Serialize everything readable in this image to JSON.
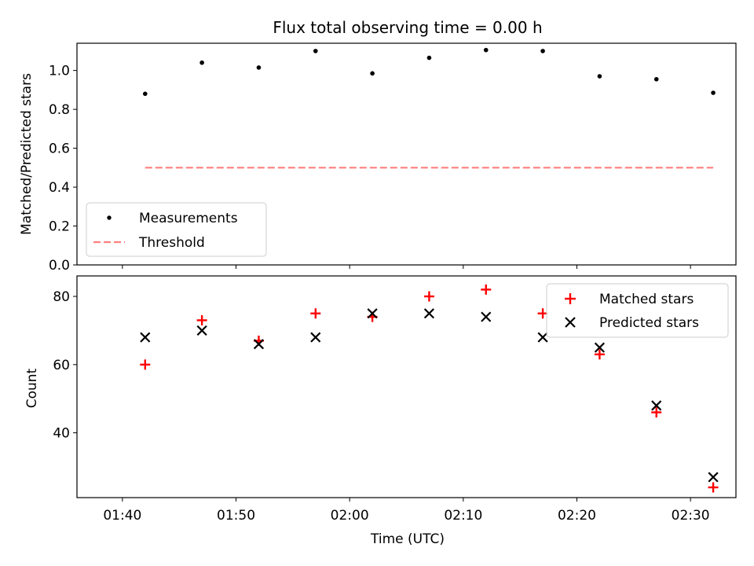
{
  "chart_data": [
    {
      "type": "scatter",
      "title": "Flux total observing time = 0.00 h",
      "ylabel": "Matched/Predicted stars",
      "xlabel": "",
      "ylim": [
        0.0,
        1.14
      ],
      "yticks": [
        "0.0",
        "0.2",
        "0.4",
        "0.6",
        "0.8",
        "1.0"
      ],
      "x_range": [
        "01:36",
        "02:34"
      ],
      "legend_position": "lower-left",
      "series": [
        {
          "name": "Measurements",
          "marker": "dot",
          "color": "#000000",
          "x": [
            "01:42",
            "01:47",
            "01:52",
            "01:57",
            "02:02",
            "02:07",
            "02:12",
            "02:17",
            "02:22",
            "02:27",
            "02:32"
          ],
          "y": [
            0.88,
            1.04,
            1.015,
            1.1,
            0.985,
            1.065,
            1.105,
            1.1,
            0.97,
            0.955,
            0.885
          ]
        },
        {
          "name": "Threshold",
          "style": "dashed-line",
          "color": "#ff7f7f",
          "x": [
            "01:42",
            "02:32"
          ],
          "y": [
            0.5,
            0.5
          ]
        }
      ]
    },
    {
      "type": "scatter",
      "title": "",
      "ylabel": "Count",
      "xlabel": "Time (UTC)",
      "ylim": [
        21,
        86
      ],
      "yticks": [
        "40",
        "60",
        "80"
      ],
      "x_range": [
        "01:36",
        "02:34"
      ],
      "xticks": [
        "01:40",
        "01:50",
        "02:00",
        "02:10",
        "02:20",
        "02:30"
      ],
      "legend_position": "upper-right",
      "series": [
        {
          "name": "Matched stars",
          "marker": "plus",
          "color": "#ff0000",
          "x": [
            "01:42",
            "01:47",
            "01:52",
            "01:57",
            "02:02",
            "02:07",
            "02:12",
            "02:17",
            "02:22",
            "02:27",
            "02:32"
          ],
          "y": [
            60,
            73,
            67,
            75,
            74,
            80,
            82,
            75,
            63,
            46,
            24
          ]
        },
        {
          "name": "Predicted stars",
          "marker": "x",
          "color": "#000000",
          "x": [
            "01:42",
            "01:47",
            "01:52",
            "01:57",
            "02:02",
            "02:07",
            "02:12",
            "02:17",
            "02:22",
            "02:27",
            "02:32"
          ],
          "y": [
            68,
            70,
            66,
            68,
            75,
            75,
            74,
            68,
            65,
            48,
            27
          ]
        }
      ]
    }
  ]
}
